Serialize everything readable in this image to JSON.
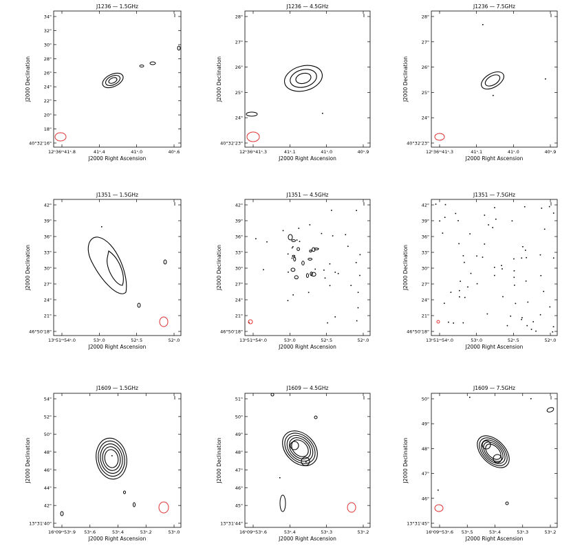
{
  "figure": {
    "x_axis_label": "J2000 Right Ascension",
    "y_axis_label": "J2000 Declination",
    "panels": [
      {
        "title": "J1236 — 1.5GHz",
        "x_ticks": [
          "12ʰ36ᵐ41ˢ.8",
          "41ˢ.4",
          "41ˢ.0",
          "40ˢ.6"
        ],
        "y_ticks": [
          "34\"",
          "32\"",
          "30\"",
          "28\"",
          "26\"",
          "24\"",
          "22\"",
          "20\"",
          "18\"",
          "40°32'16\""
        ]
      },
      {
        "title": "J1236 — 4.5GHz",
        "x_ticks": [
          "12ʰ36ᵐ41ˢ.3",
          "41ˢ.1",
          "41ˢ.0",
          "40ˢ.9"
        ],
        "y_ticks": [
          "28\"",
          "27\"",
          "26\"",
          "25\"",
          "24\"",
          "40°32'23\""
        ]
      },
      {
        "title": "J1236 — 7.5GHz",
        "x_ticks": [
          "12ʰ36ᵐ41ˢ.3",
          "41ˢ.1",
          "41ˢ.0",
          "40ˢ.9"
        ],
        "y_ticks": [
          "28\"",
          "27\"",
          "26\"",
          "25\"",
          "24\"",
          "40°32'23\""
        ]
      },
      {
        "title": "J1351 — 1.5GHz",
        "x_ticks": [
          "13ʰ51ᵐ54ˢ.0",
          "53ˢ.0",
          "52ˢ.5",
          "52ˢ.0"
        ],
        "y_ticks": [
          "42\"",
          "39\"",
          "36\"",
          "33\"",
          "30\"",
          "27\"",
          "24\"",
          "21\"",
          "46°50'18\""
        ]
      },
      {
        "title": "J1351 — 4.5GHz",
        "x_ticks": [
          "13ʰ51ᵐ54ˢ.0",
          "53ˢ.0",
          "52ˢ.5",
          "52ˢ.0"
        ],
        "y_ticks": [
          "42\"",
          "39\"",
          "36\"",
          "33\"",
          "30\"",
          "27\"",
          "24\"",
          "21\"",
          "46°50'18\""
        ]
      },
      {
        "title": "J1351 — 7.5GHz",
        "x_ticks": [
          "13ʰ51ᵐ54ˢ.0",
          "53ˢ.0",
          "52ˢ.5",
          "52ˢ.0"
        ],
        "y_ticks": [
          "42\"",
          "39\"",
          "36\"",
          "33\"",
          "30\"",
          "27\"",
          "24\"",
          "21\"",
          "46°50'18\""
        ]
      },
      {
        "title": "J1609 — 1.5GHz",
        "x_ticks": [
          "16ʰ09ᵐ53ˢ.9",
          "53ˢ.6",
          "53ˢ.4",
          "53ˢ.2",
          "53ˢ.0"
        ],
        "y_ticks": [
          "54\"",
          "52\"",
          "50\"",
          "48\"",
          "46\"",
          "44\"",
          "42\"",
          "13°31'40\""
        ]
      },
      {
        "title": "J1609 — 4.5GHz",
        "x_ticks": [
          "16ʰ09ᵐ53ˢ.6",
          "53ˢ.4",
          "53ˢ.3",
          "53ˢ.2"
        ],
        "y_ticks": [
          "51\"",
          "50\"",
          "49\"",
          "48\"",
          "47\"",
          "46\"",
          "45\"",
          "13°31'44\""
        ]
      },
      {
        "title": "J1609 — 7.5GHz",
        "x_ticks": [
          "16ʰ09ᵐ53ˢ.6",
          "53ˢ.5",
          "53ˢ.4",
          "53ˢ.3",
          "53ˢ.2"
        ],
        "y_ticks": [
          "50\"",
          "49\"",
          "48\"",
          "47\"",
          "46\"",
          "13°31'45\""
        ]
      }
    ],
    "colors": {
      "contour": "#000000",
      "beam": "#e03030"
    }
  }
}
